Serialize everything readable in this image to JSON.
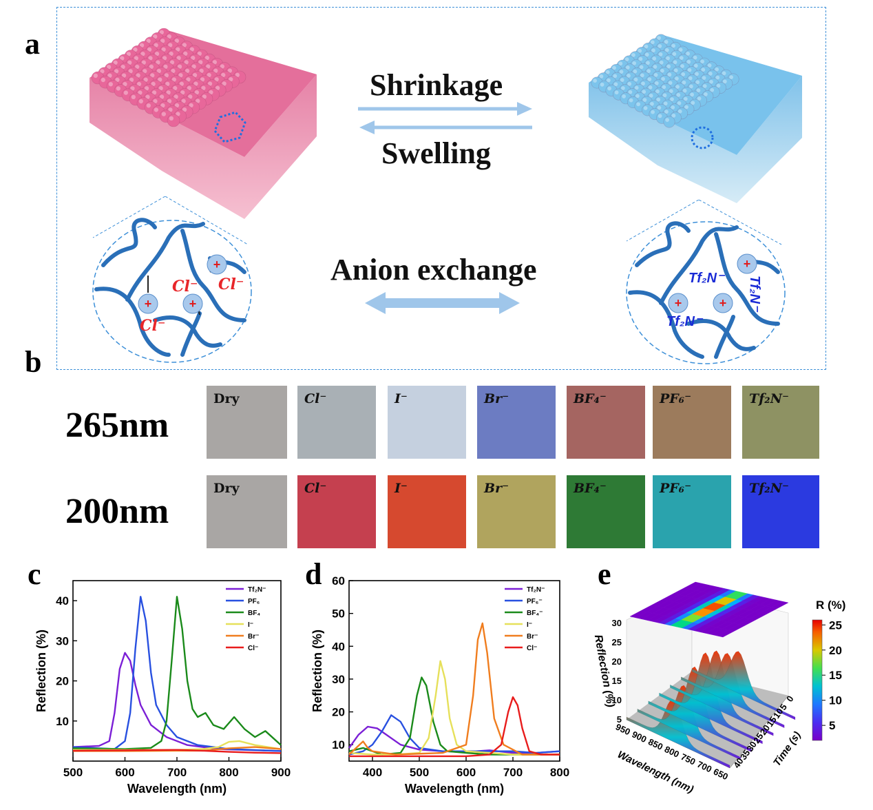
{
  "panels": {
    "a": "a",
    "b": "b",
    "c": "c",
    "d": "d",
    "e": "e"
  },
  "panel_a": {
    "shrinkage": "Shrinkage",
    "swelling": "Swelling",
    "anion_exchange": "Anion exchange",
    "left_ions": [
      "Cl⁻",
      "Cl⁻",
      "Cl⁻"
    ],
    "right_ions": [
      "Tf₂N⁻",
      "Tf₂N⁻",
      "Tf₂N⁻"
    ],
    "left_color": "#e8679a",
    "right_color": "#7cc4ec",
    "arrow_color": "#9fc6ea"
  },
  "panel_b": {
    "rows": [
      {
        "label": "265nm",
        "swatches": [
          {
            "text": "Dry",
            "color": "#a9a6a4"
          },
          {
            "text": "Cl⁻",
            "color": "#a9b0b5"
          },
          {
            "text": "I⁻",
            "color": "#c5d0df"
          },
          {
            "text": "Br⁻",
            "color": "#6c7cc2"
          },
          {
            "text": "BF₄⁻",
            "color": "#a56561"
          },
          {
            "text": "PF₆⁻",
            "color": "#9c7b5c"
          },
          {
            "text": "Tf₂N⁻",
            "color": "#8e9263"
          }
        ]
      },
      {
        "label": "200nm",
        "swatches": [
          {
            "text": "Dry",
            "color": "#a9a6a4"
          },
          {
            "text": "Cl⁻",
            "color": "#c5404f"
          },
          {
            "text": "I⁻",
            "color": "#d6492f"
          },
          {
            "text": "Br⁻",
            "color": "#b0a45e"
          },
          {
            "text": "BF₄⁻",
            "color": "#2e7a35"
          },
          {
            "text": "PF₆⁻",
            "color": "#2aa3ad"
          },
          {
            "text": "Tf₂N⁻",
            "color": "#2b3ae0"
          }
        ]
      }
    ]
  },
  "chart_data": [
    {
      "type": "line",
      "panel": "c",
      "xlabel": "Wavelength (nm)",
      "ylabel": "Reflection (%)",
      "xlim": [
        500,
        900
      ],
      "ylim": [
        0,
        45
      ],
      "xticks": [
        500,
        600,
        700,
        800,
        900
      ],
      "yticks": [
        10,
        20,
        30,
        40
      ],
      "legend_position": "top-right",
      "series": [
        {
          "name": "Tf₂N⁻",
          "color": "#7b1fd6",
          "x": [
            500,
            550,
            570,
            580,
            590,
            600,
            610,
            620,
            630,
            650,
            680,
            720,
            780,
            900
          ],
          "y": [
            3.5,
            3.8,
            5,
            12,
            23,
            27,
            25,
            19,
            14,
            9,
            6,
            4,
            3,
            2.5
          ]
        },
        {
          "name": "PF₆",
          "color": "#2850e0",
          "x": [
            500,
            580,
            600,
            610,
            620,
            630,
            640,
            650,
            660,
            680,
            700,
            740,
            800,
            900
          ],
          "y": [
            3.5,
            3,
            5,
            12,
            28,
            41,
            35,
            22,
            14,
            9,
            6,
            4,
            3,
            2.5
          ]
        },
        {
          "name": "BF₄",
          "color": "#1a8a1a",
          "x": [
            500,
            600,
            650,
            670,
            680,
            690,
            700,
            710,
            720,
            730,
            740,
            755,
            770,
            790,
            810,
            830,
            850,
            870,
            900
          ],
          "y": [
            3.2,
            3,
            3.3,
            5,
            10,
            25,
            41,
            33,
            20,
            13,
            11,
            12,
            9,
            8,
            11,
            8,
            6,
            7.5,
            4
          ]
        },
        {
          "name": "I⁻",
          "color": "#e6e05a",
          "x": [
            500,
            600,
            700,
            750,
            780,
            800,
            820,
            850,
            900
          ],
          "y": [
            2.8,
            2.8,
            2.8,
            3,
            3.5,
            4.8,
            5,
            4,
            3
          ]
        },
        {
          "name": "Br⁻",
          "color": "#f07d1e",
          "x": [
            500,
            600,
            700,
            750,
            800,
            850,
            900
          ],
          "y": [
            2.5,
            2.5,
            2.6,
            2.6,
            3.2,
            3.5,
            3
          ]
        },
        {
          "name": "Cl⁻",
          "color": "#e81c1c",
          "x": [
            500,
            600,
            700,
            750,
            800,
            850,
            900
          ],
          "y": [
            2.6,
            2.7,
            2.8,
            2.6,
            2.3,
            2.1,
            2
          ]
        }
      ]
    },
    {
      "type": "line",
      "panel": "d",
      "xlabel": "Wavelength (nm)",
      "ylabel": "Reflection (%)",
      "xlim": [
        350,
        800
      ],
      "ylim": [
        5,
        60
      ],
      "xticks": [
        400,
        500,
        600,
        700,
        800
      ],
      "yticks": [
        10,
        20,
        30,
        40,
        50,
        60
      ],
      "legend_position": "top-right",
      "series": [
        {
          "name": "Tf₂N⁻",
          "color": "#7b1fd6",
          "x": [
            350,
            370,
            390,
            410,
            430,
            460,
            500,
            550,
            600,
            650,
            700,
            750,
            800
          ],
          "y": [
            9,
            13,
            15.5,
            15,
            13,
            10,
            8.5,
            8,
            7.8,
            8.3,
            7.5,
            7.5,
            8
          ]
        },
        {
          "name": "PF₆⁻",
          "color": "#2850e0",
          "x": [
            350,
            380,
            400,
            420,
            440,
            460,
            480,
            500,
            550,
            600,
            650,
            700,
            750,
            800
          ],
          "y": [
            7,
            8,
            10,
            14,
            19,
            17,
            12,
            9,
            8,
            8,
            8,
            8,
            7.5,
            8
          ]
        },
        {
          "name": "BF₄⁻",
          "color": "#1a8a1a",
          "x": [
            350,
            380,
            420,
            460,
            480,
            495,
            505,
            515,
            530,
            545,
            560,
            600,
            650,
            700,
            800
          ],
          "y": [
            8,
            9,
            7,
            7.5,
            12,
            25,
            30.5,
            28,
            17,
            10,
            8,
            7.5,
            7,
            7,
            7
          ]
        },
        {
          "name": "I⁻",
          "color": "#e6e05a",
          "x": [
            350,
            400,
            450,
            500,
            520,
            535,
            545,
            555,
            565,
            580,
            600,
            650,
            700,
            800
          ],
          "y": [
            7.5,
            7,
            7,
            7.5,
            12,
            25,
            35.5,
            30,
            18,
            10,
            8,
            7.5,
            7,
            7
          ]
        },
        {
          "name": "Br⁻",
          "color": "#f07d1e",
          "x": [
            350,
            380,
            390,
            400,
            450,
            550,
            600,
            615,
            625,
            635,
            645,
            660,
            680,
            720,
            800
          ],
          "y": [
            7,
            11,
            9,
            8,
            7,
            7.5,
            10,
            25,
            42,
            47,
            38,
            18,
            10,
            7,
            7
          ]
        },
        {
          "name": "Cl⁻",
          "color": "#e81c1c",
          "x": [
            350,
            500,
            600,
            650,
            675,
            690,
            700,
            710,
            720,
            735,
            760,
            800
          ],
          "y": [
            6.5,
            6.5,
            6.5,
            7,
            10,
            20,
            24.5,
            22,
            15,
            8,
            7,
            7
          ]
        }
      ]
    },
    {
      "type": "surface3d",
      "panel": "e",
      "zlabel": "Reflection (%)",
      "xlabel": "Wavelength (nm)",
      "ylabel": "Time (s)",
      "xticks": [
        950,
        900,
        850,
        800,
        750,
        700,
        650
      ],
      "yticks": [
        0,
        5,
        10,
        15,
        20,
        25,
        30,
        35,
        40
      ],
      "zticks": [
        5,
        10,
        15,
        20,
        25,
        30
      ],
      "colorbar": {
        "title": "R (%)",
        "ticks": [
          25,
          20,
          15,
          10,
          5
        ],
        "range": [
          2,
          26
        ]
      }
    }
  ]
}
